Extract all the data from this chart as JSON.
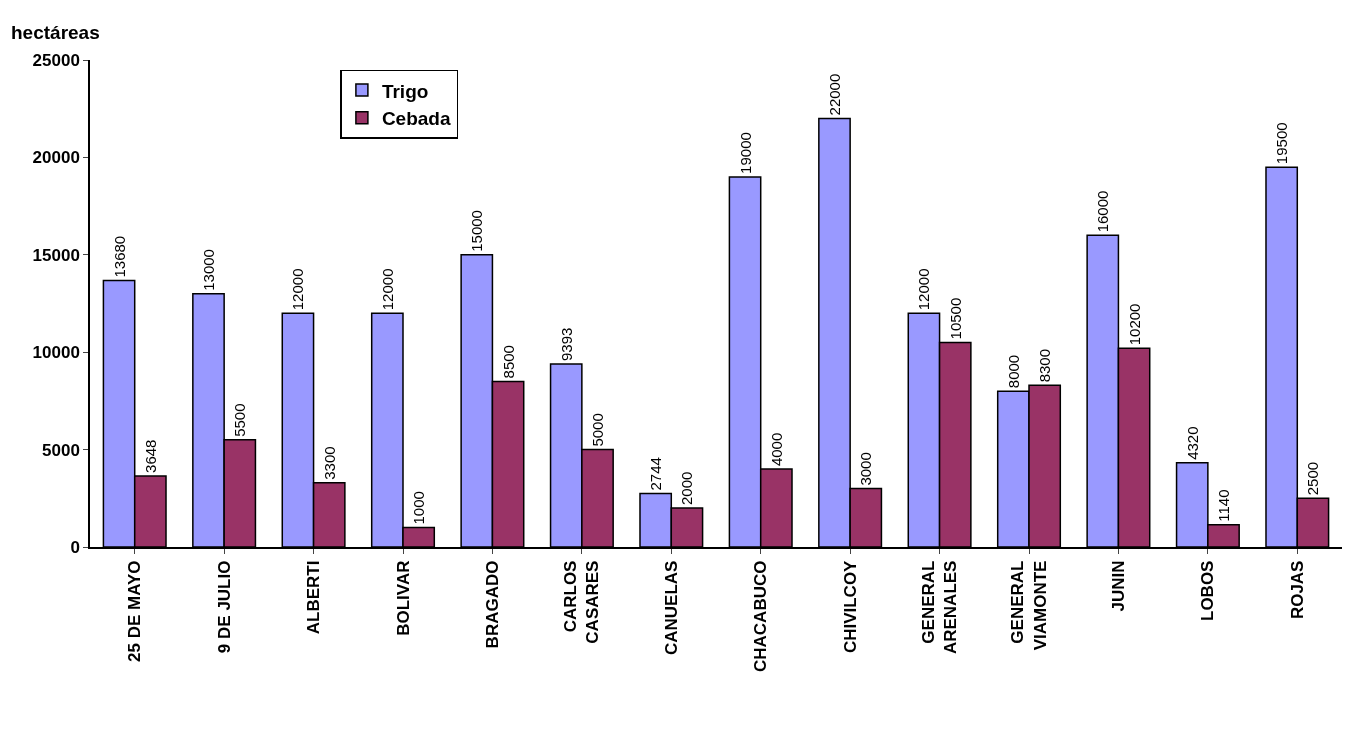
{
  "chart_data": {
    "type": "bar",
    "ylabel": "hectáreas",
    "categories": [
      "25 DE MAYO",
      "9 DE JULIO",
      "ALBERTI",
      "BOLIVAR",
      "BRAGADO",
      "CARLOS\nCASARES",
      "CANUELAS",
      "CHACABUCO",
      "CHIVILCOY",
      "GENERAL\nARENALES",
      "GENERAL\nVIAMONTE",
      "JUNIN",
      "LOBOS",
      "ROJAS"
    ],
    "series": [
      {
        "name": "Trigo",
        "color": "#9999ff",
        "values": [
          13680,
          13000,
          12000,
          12000,
          15000,
          9393,
          2744,
          19000,
          22000,
          12000,
          8000,
          16000,
          4320,
          19500
        ]
      },
      {
        "name": "Cebada",
        "color": "#993366",
        "values": [
          3648,
          5500,
          3300,
          1000,
          8500,
          5000,
          2000,
          4000,
          3000,
          10500,
          8300,
          10200,
          1140,
          2500
        ]
      }
    ],
    "ylim": [
      0,
      25000
    ],
    "yticks": [
      0,
      5000,
      10000,
      15000,
      20000,
      25000
    ],
    "legend": "top left",
    "data_labels": true
  }
}
